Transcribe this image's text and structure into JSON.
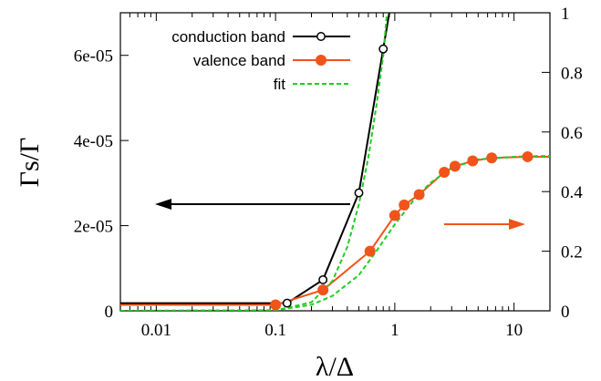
{
  "chart_data": {
    "type": "line",
    "xlabel": "λ/Δ",
    "ylabel": "Γs/Γ",
    "xscale": "log",
    "xlim": [
      0.005,
      20
    ],
    "ylim_left": [
      0,
      7e-05
    ],
    "ylim_right": [
      0,
      1
    ],
    "x_ticks": [
      {
        "value": 0.01,
        "label": "0.01"
      },
      {
        "value": 0.1,
        "label": "0.1"
      },
      {
        "value": 1,
        "label": "1"
      },
      {
        "value": 10,
        "label": "10"
      }
    ],
    "y_left_ticks": [
      {
        "value": 0,
        "label": "0"
      },
      {
        "value": 2e-05,
        "label": "2e-05"
      },
      {
        "value": 4e-05,
        "label": "4e-05"
      },
      {
        "value": 6e-05,
        "label": "6e-05"
      }
    ],
    "y_right_ticks": [
      {
        "value": 0,
        "label": "0"
      },
      {
        "value": 0.2,
        "label": "0.2"
      },
      {
        "value": 0.4,
        "label": "0.4"
      },
      {
        "value": 0.6,
        "label": "0.6"
      },
      {
        "value": 0.8,
        "label": "0.8"
      },
      {
        "value": 1,
        "label": "1"
      }
    ],
    "grid": false,
    "legend_position": "top-left",
    "series": [
      {
        "name": "conduction band",
        "axis": "left",
        "color": "#000000",
        "marker": "open-circle",
        "points": [
          [
            0.005,
            1.8e-06
          ],
          [
            0.125,
            1.8e-06
          ],
          [
            0.25,
            7.3e-06
          ],
          [
            0.5,
            2.77e-05
          ],
          [
            0.8,
            6.15e-05
          ]
        ],
        "continues_to": [
          0.9,
          7e-05
        ]
      },
      {
        "name": "valence band",
        "axis": "right",
        "color": "#f0541a",
        "marker": "filled-circle",
        "points": [
          [
            0.005,
            0.02
          ],
          [
            0.1,
            0.02
          ],
          [
            0.25,
            0.07
          ],
          [
            0.62,
            0.2
          ],
          [
            1.0,
            0.32
          ],
          [
            1.2,
            0.355
          ],
          [
            1.6,
            0.39
          ],
          [
            2.6,
            0.465
          ],
          [
            3.2,
            0.485
          ],
          [
            4.5,
            0.503
          ],
          [
            6.5,
            0.513
          ],
          [
            13,
            0.517
          ],
          [
            20,
            0.517
          ]
        ]
      },
      {
        "name": "fit",
        "axis": "right",
        "color": "#22cc22",
        "dashed": true,
        "points": [
          [
            0.005,
            0
          ],
          [
            0.1,
            0.002
          ],
          [
            0.2,
            0.02
          ],
          [
            0.3,
            0.05
          ],
          [
            0.5,
            0.12
          ],
          [
            0.7,
            0.2
          ],
          [
            1.0,
            0.29
          ],
          [
            1.5,
            0.38
          ],
          [
            2.0,
            0.43
          ],
          [
            3.0,
            0.48
          ],
          [
            5.0,
            0.508
          ],
          [
            10,
            0.517
          ],
          [
            20,
            0.52
          ]
        ]
      },
      {
        "name": "fit",
        "axis": "left",
        "color": "#22cc22",
        "dashed": true,
        "legend": false,
        "points": [
          [
            0.005,
            0
          ],
          [
            0.1,
            1e-07
          ],
          [
            0.2,
            2e-06
          ],
          [
            0.3,
            7e-06
          ],
          [
            0.4,
            1.5e-05
          ],
          [
            0.5,
            2.5e-05
          ],
          [
            0.6,
            3.6e-05
          ],
          [
            0.7,
            4.8e-05
          ],
          [
            0.8,
            6e-05
          ],
          [
            0.86,
            7e-05
          ]
        ]
      }
    ],
    "annotations": [
      {
        "type": "arrow",
        "direction": "left",
        "color": "#000000",
        "meaning": "left axis"
      },
      {
        "type": "arrow",
        "direction": "right",
        "color": "#f0541a",
        "meaning": "right axis"
      }
    ]
  }
}
